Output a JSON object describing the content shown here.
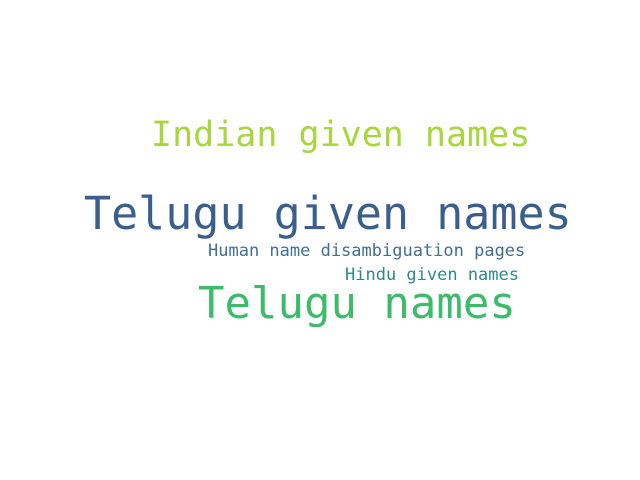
{
  "word_cloud": {
    "words": [
      {
        "text": "Indian given names",
        "color": "#a8d63c"
      },
      {
        "text": "Telugu given names",
        "color": "#3a5f8c"
      },
      {
        "text": "Human name disambiguation pages",
        "color": "#3e6f95"
      },
      {
        "text": "Hindu given names",
        "color": "#2a8a8e"
      },
      {
        "text": "Telugu names",
        "color": "#3cbc6a"
      }
    ]
  }
}
